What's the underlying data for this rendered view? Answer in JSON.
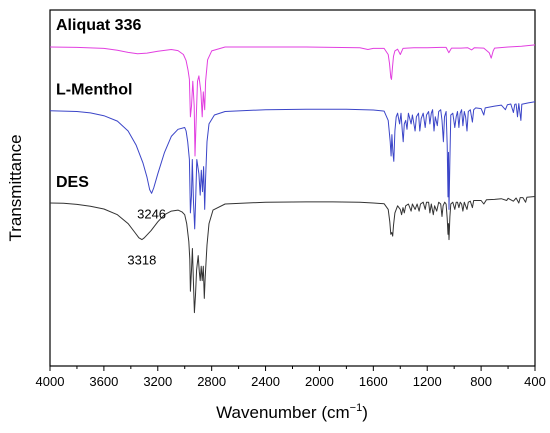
{
  "chart_data": {
    "type": "line",
    "xlabel": "Wavenumber (cm",
    "xlabel_sup": "−1",
    "xlabel_close": ")",
    "ylabel": "Transmittance",
    "xlim": [
      4000,
      400
    ],
    "ylim": [
      0,
      100
    ],
    "x_ticks": [
      4000,
      3600,
      3200,
      2800,
      2400,
      2000,
      1600,
      1200,
      800,
      400
    ],
    "grid": false,
    "y_tick_labels": false,
    "series": [
      {
        "name": "Aliquat 336",
        "color": "#e23fe0",
        "points": [
          [
            4000,
            89.6
          ],
          [
            3800,
            89.5
          ],
          [
            3600,
            89.2
          ],
          [
            3500,
            88.7
          ],
          [
            3420,
            88.1
          ],
          [
            3350,
            87.7
          ],
          [
            3280,
            87.9
          ],
          [
            3200,
            88.4
          ],
          [
            3100,
            88.9
          ],
          [
            3050,
            88.6
          ],
          [
            3010,
            87.5
          ],
          [
            2990,
            85.8
          ],
          [
            2975,
            83.0
          ],
          [
            2965,
            80.5
          ],
          [
            2958,
            70
          ],
          [
            2950,
            73
          ],
          [
            2940,
            80
          ],
          [
            2930,
            73
          ],
          [
            2924,
            59
          ],
          [
            2918,
            66
          ],
          [
            2905,
            80
          ],
          [
            2895,
            81.5
          ],
          [
            2880,
            77
          ],
          [
            2870,
            70
          ],
          [
            2862,
            77
          ],
          [
            2856,
            74
          ],
          [
            2852,
            72
          ],
          [
            2845,
            80
          ],
          [
            2830,
            86
          ],
          [
            2800,
            88.5
          ],
          [
            2700,
            89.6
          ],
          [
            2400,
            89.6
          ],
          [
            2100,
            89.6
          ],
          [
            1900,
            89.5
          ],
          [
            1700,
            89.4
          ],
          [
            1640,
            88.9
          ],
          [
            1600,
            89.2
          ],
          [
            1520,
            89.2
          ],
          [
            1490,
            87.5
          ],
          [
            1480,
            85
          ],
          [
            1470,
            81
          ],
          [
            1465,
            80.5
          ],
          [
            1458,
            84
          ],
          [
            1450,
            87
          ],
          [
            1440,
            88.5
          ],
          [
            1420,
            89
          ],
          [
            1400,
            87.5
          ],
          [
            1380,
            89.2
          ],
          [
            1350,
            89.3
          ],
          [
            1300,
            89.4
          ],
          [
            1200,
            89.4
          ],
          [
            1100,
            89.5
          ],
          [
            1060,
            89.5
          ],
          [
            1040,
            88
          ],
          [
            1020,
            89.3
          ],
          [
            950,
            89.3
          ],
          [
            900,
            89.4
          ],
          [
            870,
            88.8
          ],
          [
            850,
            89.4
          ],
          [
            780,
            89.3
          ],
          [
            740,
            88
          ],
          [
            725,
            86.5
          ],
          [
            710,
            88.5
          ],
          [
            700,
            89.3
          ],
          [
            600,
            89.6
          ],
          [
            500,
            89.8
          ],
          [
            400,
            90.2
          ]
        ]
      },
      {
        "name": "L-Menthol",
        "color": "#3b45c8",
        "points": [
          [
            4000,
            71.7
          ],
          [
            3800,
            71.5
          ],
          [
            3700,
            71.1
          ],
          [
            3600,
            70.3
          ],
          [
            3500,
            68.8
          ],
          [
            3420,
            66
          ],
          [
            3360,
            62
          ],
          [
            3310,
            57
          ],
          [
            3280,
            53
          ],
          [
            3260,
            49.5
          ],
          [
            3246,
            48.5
          ],
          [
            3230,
            50
          ],
          [
            3200,
            54
          ],
          [
            3150,
            60
          ],
          [
            3100,
            64.5
          ],
          [
            3050,
            66.5
          ],
          [
            3000,
            67
          ],
          [
            2990,
            66
          ],
          [
            2978,
            63
          ],
          [
            2965,
            58
          ],
          [
            2958,
            43
          ],
          [
            2950,
            48
          ],
          [
            2944,
            58
          ],
          [
            2935,
            46
          ],
          [
            2926,
            38.5
          ],
          [
            2918,
            48
          ],
          [
            2910,
            58
          ],
          [
            2895,
            54
          ],
          [
            2885,
            48
          ],
          [
            2877,
            55
          ],
          [
            2868,
            49
          ],
          [
            2860,
            56
          ],
          [
            2852,
            44
          ],
          [
            2846,
            52
          ],
          [
            2835,
            63
          ],
          [
            2820,
            68
          ],
          [
            2780,
            70.5
          ],
          [
            2700,
            71.5
          ],
          [
            2400,
            72
          ],
          [
            2100,
            72.1
          ],
          [
            1800,
            72.1
          ],
          [
            1600,
            71.9
          ],
          [
            1520,
            71.6
          ],
          [
            1490,
            69
          ],
          [
            1475,
            63
          ],
          [
            1468,
            59
          ],
          [
            1462,
            65
          ],
          [
            1455,
            60
          ],
          [
            1448,
            57.5
          ],
          [
            1440,
            66
          ],
          [
            1430,
            70
          ],
          [
            1420,
            71
          ],
          [
            1405,
            68
          ],
          [
            1395,
            71
          ],
          [
            1385,
            66
          ],
          [
            1378,
            63
          ],
          [
            1370,
            68
          ],
          [
            1360,
            69
          ],
          [
            1350,
            66.5
          ],
          [
            1340,
            71
          ],
          [
            1320,
            68
          ],
          [
            1310,
            70.5
          ],
          [
            1290,
            66
          ],
          [
            1280,
            70
          ],
          [
            1265,
            71
          ],
          [
            1255,
            66
          ],
          [
            1245,
            69.5
          ],
          [
            1230,
            71
          ],
          [
            1215,
            67
          ],
          [
            1205,
            70.5
          ],
          [
            1190,
            71.5
          ],
          [
            1180,
            68
          ],
          [
            1170,
            71
          ],
          [
            1160,
            72
          ],
          [
            1150,
            66
          ],
          [
            1140,
            70
          ],
          [
            1125,
            67.5
          ],
          [
            1115,
            71.5
          ],
          [
            1100,
            72
          ],
          [
            1090,
            69
          ],
          [
            1080,
            63
          ],
          [
            1072,
            70
          ],
          [
            1060,
            71.5
          ],
          [
            1052,
            62
          ],
          [
            1046,
            47.5
          ],
          [
            1042,
            60
          ],
          [
            1038,
            44
          ],
          [
            1032,
            58
          ],
          [
            1025,
            70.5
          ],
          [
            1010,
            71
          ],
          [
            995,
            67
          ],
          [
            985,
            70
          ],
          [
            975,
            71.5
          ],
          [
            965,
            67
          ],
          [
            955,
            71
          ],
          [
            945,
            72
          ],
          [
            935,
            67.5
          ],
          [
            925,
            71.5
          ],
          [
            915,
            70
          ],
          [
            905,
            66
          ],
          [
            895,
            71.5
          ],
          [
            880,
            72
          ],
          [
            865,
            68.5
          ],
          [
            855,
            72
          ],
          [
            840,
            72.5
          ],
          [
            800,
            72.3
          ],
          [
            780,
            70.5
          ],
          [
            770,
            72.5
          ],
          [
            700,
            73
          ],
          [
            650,
            73.3
          ],
          [
            620,
            72
          ],
          [
            605,
            73.4
          ],
          [
            580,
            73.6
          ],
          [
            560,
            71.2
          ],
          [
            550,
            73.5
          ],
          [
            540,
            73.6
          ],
          [
            530,
            70
          ],
          [
            520,
            73.7
          ],
          [
            505,
            69
          ],
          [
            498,
            73.5
          ],
          [
            450,
            73.9
          ],
          [
            400,
            74.2
          ]
        ]
      },
      {
        "name": "DES",
        "color": "#333333",
        "points": [
          [
            4000,
            45.8
          ],
          [
            3900,
            45.7
          ],
          [
            3800,
            45.4
          ],
          [
            3700,
            44.9
          ],
          [
            3600,
            44.1
          ],
          [
            3500,
            42.5
          ],
          [
            3420,
            40
          ],
          [
            3370,
            37.5
          ],
          [
            3340,
            36
          ],
          [
            3318,
            35.5
          ],
          [
            3300,
            36
          ],
          [
            3250,
            38
          ],
          [
            3200,
            40.5
          ],
          [
            3150,
            42.5
          ],
          [
            3100,
            43.5
          ],
          [
            3050,
            43.8
          ],
          [
            3020,
            43.3
          ],
          [
            3000,
            42.5
          ],
          [
            2985,
            40
          ],
          [
            2970,
            35
          ],
          [
            2962,
            30
          ],
          [
            2958,
            21
          ],
          [
            2950,
            27
          ],
          [
            2943,
            33
          ],
          [
            2935,
            23
          ],
          [
            2928,
            15
          ],
          [
            2920,
            20
          ],
          [
            2912,
            27
          ],
          [
            2900,
            31
          ],
          [
            2892,
            26.5
          ],
          [
            2885,
            24
          ],
          [
            2878,
            28
          ],
          [
            2870,
            24
          ],
          [
            2862,
            28
          ],
          [
            2855,
            19
          ],
          [
            2848,
            25
          ],
          [
            2835,
            34
          ],
          [
            2820,
            40
          ],
          [
            2790,
            43.8
          ],
          [
            2700,
            45.5
          ],
          [
            2400,
            46
          ],
          [
            2100,
            46.1
          ],
          [
            1900,
            46.1
          ],
          [
            1700,
            46
          ],
          [
            1600,
            45.8
          ],
          [
            1520,
            45.6
          ],
          [
            1490,
            44
          ],
          [
            1478,
            40.5
          ],
          [
            1470,
            37
          ],
          [
            1463,
            37.5
          ],
          [
            1456,
            36.5
          ],
          [
            1450,
            39.5
          ],
          [
            1440,
            43
          ],
          [
            1420,
            45
          ],
          [
            1400,
            44
          ],
          [
            1390,
            42.5
          ],
          [
            1380,
            44.5
          ],
          [
            1370,
            43
          ],
          [
            1360,
            45
          ],
          [
            1340,
            45.5
          ],
          [
            1320,
            43.5
          ],
          [
            1310,
            45.5
          ],
          [
            1290,
            44
          ],
          [
            1275,
            45.5
          ],
          [
            1260,
            43.5
          ],
          [
            1250,
            45.5
          ],
          [
            1230,
            46
          ],
          [
            1215,
            44
          ],
          [
            1205,
            46
          ],
          [
            1190,
            46
          ],
          [
            1180,
            43
          ],
          [
            1170,
            45.5
          ],
          [
            1155,
            42.5
          ],
          [
            1145,
            45
          ],
          [
            1130,
            43.5
          ],
          [
            1115,
            46
          ],
          [
            1100,
            45.5
          ],
          [
            1090,
            42
          ],
          [
            1082,
            45
          ],
          [
            1070,
            46
          ],
          [
            1060,
            45.5
          ],
          [
            1052,
            41.5
          ],
          [
            1046,
            37
          ],
          [
            1042,
            40
          ],
          [
            1038,
            35.5
          ],
          [
            1032,
            42
          ],
          [
            1025,
            45.5
          ],
          [
            1010,
            46
          ],
          [
            995,
            44
          ],
          [
            985,
            46
          ],
          [
            975,
            46
          ],
          [
            965,
            44.5
          ],
          [
            955,
            46
          ],
          [
            945,
            45.5
          ],
          [
            935,
            43.5
          ],
          [
            925,
            46
          ],
          [
            915,
            45
          ],
          [
            905,
            44
          ],
          [
            895,
            46
          ],
          [
            880,
            46.3
          ],
          [
            865,
            44.5
          ],
          [
            855,
            46.5
          ],
          [
            800,
            46.5
          ],
          [
            780,
            45.5
          ],
          [
            760,
            46.7
          ],
          [
            700,
            46.8
          ],
          [
            650,
            47
          ],
          [
            610,
            46.5
          ],
          [
            600,
            47.1
          ],
          [
            560,
            46.3
          ],
          [
            540,
            47.2
          ],
          [
            520,
            45.8
          ],
          [
            510,
            47.3
          ],
          [
            490,
            47.3
          ],
          [
            470,
            46
          ],
          [
            460,
            47.4
          ],
          [
            400,
            47.6
          ]
        ]
      }
    ],
    "series_labels": [
      {
        "text": "Aliquat 336",
        "x": 4000,
        "y": 96
      },
      {
        "text": "L-Menthol",
        "x": 4000,
        "y": 78
      },
      {
        "text": "DES",
        "x": 4000,
        "y": 52
      }
    ],
    "annotations": [
      {
        "text": "3246",
        "x": 3246,
        "y": 41.5
      },
      {
        "text": "3318",
        "x": 3318,
        "y": 28.5
      }
    ]
  }
}
